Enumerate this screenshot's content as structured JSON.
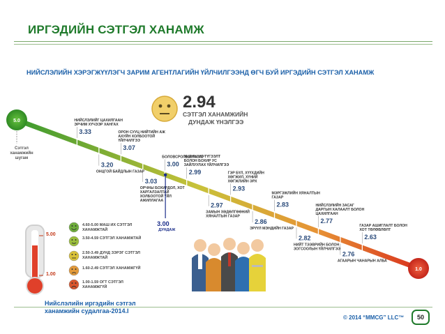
{
  "page": {
    "title": "ИРГЭДИЙН СЭТГЭЛ ХАНАМЖ",
    "subtitle": "НИЙСЛЭЛИЙН ХЭРЭГЖҮҮЛЭГЧ ЗАРИМ АГЕНТЛАГИЙН ҮЙЛЧИЛГЭЭНД ӨГЧ БУЙ ИРГЭДИЙН СЭТГЭЛ ХАНАМЖ",
    "footer_line1": "Нийслэлийн иргэдийн сэтгэл",
    "footer_line2": "ханамжийн судалгаа-2014.I",
    "copyright": "© 2014 “MMCG” LLC™",
    "page_number": "50"
  },
  "average": {
    "value": "2.94",
    "label_line1": "СЭТГЭЛ ХАНАМЖИЙН",
    "label_line2": "ДУНДАЖ ҮНЭЛГЭЭ",
    "icon": "neutral-face-icon"
  },
  "start_note": "Сэтгэл ханамжийн шугам",
  "thermometer": {
    "top_label": "5.00",
    "bottom_label": "1.00",
    "icon": "thermometer-icon"
  },
  "legend": [
    {
      "label": "4.60-5.00 МАШ ИХ СЭТГЭЛ ХАНАМЖТАЙ",
      "color": "#6fae3c",
      "icon": "very-happy-face-icon"
    },
    {
      "label": "3.50-4.59 СЭТГЭЛ ХАНАМЖТАЙ",
      "color": "#9bbf3c",
      "icon": "happy-face-icon"
    },
    {
      "label": "2.50-3.49 ДУНД ЗЭРЭГ СЭТГЭЛ ХАНАМЖТАЙ",
      "color": "#d9c23a",
      "icon": "neutral-face-icon"
    },
    {
      "label": "1.60-2.49 СЭТГЭЛ ХАНАМЖГҮЙ",
      "color": "#e39a3a",
      "icon": "sad-face-icon"
    },
    {
      "label": "1.00-1.59 ОГТ СЭТГЭЛ ХАНАМЖГҮЙ",
      "color": "#d9562e",
      "icon": "very-sad-face-icon"
    }
  ],
  "chart_data": {
    "type": "line",
    "scale_start": "5.0",
    "scale_end": "1.0",
    "average": 2.94,
    "average_marker_value": "3.00",
    "average_marker_label": "ДУНДАЖ",
    "points": [
      {
        "value": 3.33,
        "label": "НИЙСЛЭЛИЙГ ЦАХИЛГААН ЭРЧИМ ХҮЧЭЭР ХАНГАХ",
        "side": "up"
      },
      {
        "value": 3.2,
        "label": "ОНЦГОЙ БАЙДЛЫН ГАЗАР",
        "side": "down"
      },
      {
        "value": 3.07,
        "label": "ОРОН СУУЦ НИЙТИЙН АЖ АХУЙН ХОЛБООТОЙ ҮЙЛЧИЛГЭЭ",
        "side": "up"
      },
      {
        "value": 3.03,
        "label": "ОРЧНЫ БОХИРДОЛ, ХОТ ХАРГАЛЗАЛТАЙ ХОЛБООТОЙ ҮЙЛ АЖИЛЛАГАА",
        "side": "down"
      },
      {
        "value": 3.0,
        "label": "БОЛОВСРОЛЫН ГАЗАР",
        "side": "up"
      },
      {
        "value": 2.99,
        "label": "УНДНЫ УС ТҮГЭЭЛТ БОЛОН БОХИР УС ЗАЙЛУУЛАХ ҮЙЛЧИЛГЭЭ",
        "side": "up"
      },
      {
        "value": 2.97,
        "label": "ЗАМЫН ХӨДӨЛГӨӨНИЙ ХЯНАЛТЫН ГАЗАР",
        "side": "down"
      },
      {
        "value": 2.93,
        "label": "ГЭР БҮЛ, ХҮҮХДИЙН ХӨГЖИЛ, ХҮНИЙ ХӨГЖЛИЙН ЭРХ",
        "side": "up"
      },
      {
        "value": 2.86,
        "label": "ЭРҮҮЛ МЭНДИЙН ГАЗАР",
        "side": "down"
      },
      {
        "value": 2.83,
        "label": "МЭРГЭЖЛИЙН ХЯНАЛТЫН ГАЗАР",
        "side": "up"
      },
      {
        "value": 2.82,
        "label": "НИЙТ ТЭЭВРИЙН БОЛОН ЗОГСООЛЫН ҮЙЛЧИЛГЭЭ",
        "side": "down"
      },
      {
        "value": 2.77,
        "label": "НИЙСЛЭЛИЙН ЗАСАГ ДАРГЫН ХАЛААЛТ БОЛОН ЦАХИЛГААН",
        "side": "up"
      },
      {
        "value": 2.76,
        "label": "АГААРЫН ЧАНАРЫН АЛБА",
        "side": "down"
      },
      {
        "value": 2.63,
        "label": "ГАЗАР АШИГЛАЛТ БОЛОН ХОТ ТӨЛӨВЛӨЛТ",
        "side": "up"
      }
    ]
  }
}
